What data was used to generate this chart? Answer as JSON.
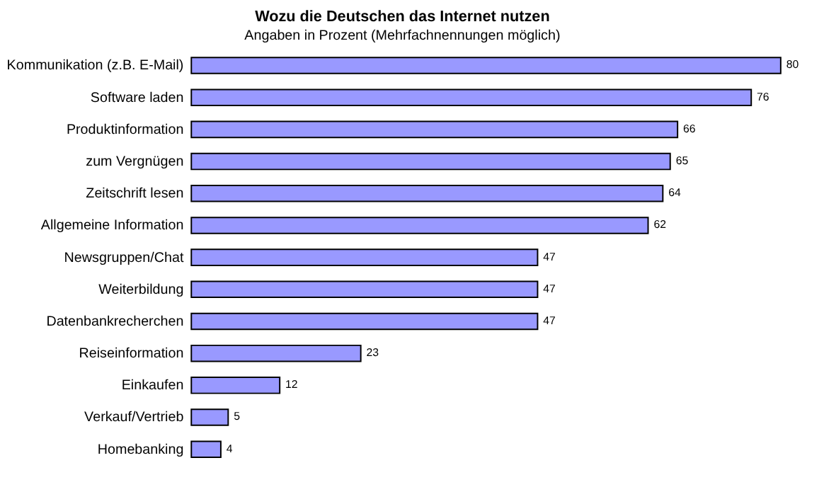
{
  "chart_data": {
    "type": "bar",
    "orientation": "horizontal",
    "title": "Wozu die Deutschen das Internet nutzen",
    "subtitle": "Angaben in Prozent (Mehrfachnennungen möglich)",
    "categories": [
      "Kommunikation (z.B. E-Mail)",
      "Software laden",
      "Produktinformation",
      "zum Vergnügen",
      "Zeitschrift lesen",
      "Allgemeine Information",
      "Newsgruppen/Chat",
      "Weiterbildung",
      "Datenbankrecherchen",
      "Reiseinformation",
      "Einkaufen",
      "Verkauf/Vertrieb",
      "Homebanking"
    ],
    "values": [
      80,
      76,
      66,
      65,
      64,
      62,
      47,
      47,
      47,
      23,
      12,
      5,
      4
    ],
    "color": "#9999ff",
    "data_labels": true
  }
}
